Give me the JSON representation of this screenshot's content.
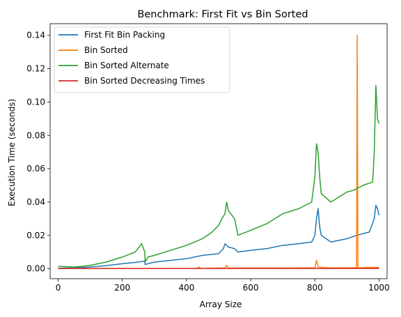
{
  "chart_data": {
    "type": "line",
    "title": "Benchmark: First Fit vs Bin Sorted",
    "xlabel": "Array Size",
    "ylabel": "Execution Time (seconds)",
    "xlim": [
      -25,
      1025
    ],
    "ylim": [
      -0.006,
      0.147
    ],
    "x_ticks": [
      0,
      200,
      400,
      600,
      800,
      1000
    ],
    "x_tick_labels": [
      "0",
      "200",
      "400",
      "600",
      "800",
      "1000"
    ],
    "y_ticks": [
      0.0,
      0.02,
      0.04,
      0.06,
      0.08,
      0.1,
      0.12,
      0.14
    ],
    "y_tick_labels": [
      "0.00",
      "0.02",
      "0.04",
      "0.06",
      "0.08",
      "0.10",
      "0.12",
      "0.14"
    ],
    "legend_position": "top-left",
    "grid": false,
    "series": [
      {
        "name": "First Fit Bin Packing",
        "color": "#1f77b4",
        "points": [
          [
            0,
            0.0003
          ],
          [
            50,
            0.0005
          ],
          [
            100,
            0.001
          ],
          [
            150,
            0.0018
          ],
          [
            200,
            0.003
          ],
          [
            240,
            0.0038
          ],
          [
            270,
            0.0045
          ],
          [
            271,
            0.0025
          ],
          [
            300,
            0.004
          ],
          [
            350,
            0.005
          ],
          [
            400,
            0.006
          ],
          [
            450,
            0.008
          ],
          [
            500,
            0.009
          ],
          [
            515,
            0.012
          ],
          [
            520,
            0.015
          ],
          [
            530,
            0.013
          ],
          [
            550,
            0.012
          ],
          [
            560,
            0.01
          ],
          [
            600,
            0.011
          ],
          [
            650,
            0.012
          ],
          [
            700,
            0.014
          ],
          [
            750,
            0.015
          ],
          [
            790,
            0.016
          ],
          [
            800,
            0.02
          ],
          [
            805,
            0.03
          ],
          [
            810,
            0.036
          ],
          [
            815,
            0.025
          ],
          [
            820,
            0.02
          ],
          [
            850,
            0.016
          ],
          [
            900,
            0.018
          ],
          [
            930,
            0.02
          ],
          [
            950,
            0.021
          ],
          [
            970,
            0.022
          ],
          [
            985,
            0.03
          ],
          [
            990,
            0.038
          ],
          [
            995,
            0.036
          ],
          [
            1000,
            0.032
          ]
        ]
      },
      {
        "name": "Bin Sorted",
        "color": "#ff7f0e",
        "points": [
          [
            0,
            0.0001
          ],
          [
            430,
            0.0002
          ],
          [
            440,
            0.001
          ],
          [
            445,
            0.0002
          ],
          [
            520,
            0.0005
          ],
          [
            525,
            0.002
          ],
          [
            530,
            0.0005
          ],
          [
            700,
            0.0004
          ],
          [
            800,
            0.0006
          ],
          [
            805,
            0.005
          ],
          [
            810,
            0.001
          ],
          [
            850,
            0.0005
          ],
          [
            930,
            0.0006
          ],
          [
            932,
            0.14
          ],
          [
            934,
            0.0005
          ],
          [
            960,
            0.0008
          ],
          [
            1000,
            0.0008
          ]
        ]
      },
      {
        "name": "Bin Sorted Alternate",
        "color": "#2ca02c",
        "points": [
          [
            0,
            0.0015
          ],
          [
            50,
            0.001
          ],
          [
            100,
            0.002
          ],
          [
            150,
            0.004
          ],
          [
            200,
            0.007
          ],
          [
            240,
            0.01
          ],
          [
            260,
            0.015
          ],
          [
            270,
            0.01
          ],
          [
            271,
            0.004
          ],
          [
            280,
            0.007
          ],
          [
            300,
            0.008
          ],
          [
            350,
            0.011
          ],
          [
            400,
            0.014
          ],
          [
            450,
            0.018
          ],
          [
            480,
            0.022
          ],
          [
            500,
            0.026
          ],
          [
            510,
            0.03
          ],
          [
            520,
            0.033
          ],
          [
            525,
            0.04
          ],
          [
            530,
            0.035
          ],
          [
            550,
            0.03
          ],
          [
            560,
            0.02
          ],
          [
            600,
            0.023
          ],
          [
            650,
            0.027
          ],
          [
            700,
            0.033
          ],
          [
            750,
            0.036
          ],
          [
            790,
            0.04
          ],
          [
            800,
            0.055
          ],
          [
            805,
            0.075
          ],
          [
            810,
            0.07
          ],
          [
            815,
            0.055
          ],
          [
            820,
            0.045
          ],
          [
            850,
            0.04
          ],
          [
            900,
            0.046
          ],
          [
            920,
            0.047
          ],
          [
            950,
            0.05
          ],
          [
            980,
            0.052
          ],
          [
            985,
            0.07
          ],
          [
            990,
            0.11
          ],
          [
            995,
            0.09
          ],
          [
            1000,
            0.087
          ]
        ]
      },
      {
        "name": "Bin Sorted Decreasing Times",
        "color": "#d62728",
        "points": [
          [
            0,
            0.0001
          ],
          [
            200,
            0.0001
          ],
          [
            400,
            0.0001
          ],
          [
            600,
            0.0001
          ],
          [
            800,
            0.0001
          ],
          [
            1000,
            0.0001
          ]
        ]
      }
    ]
  }
}
